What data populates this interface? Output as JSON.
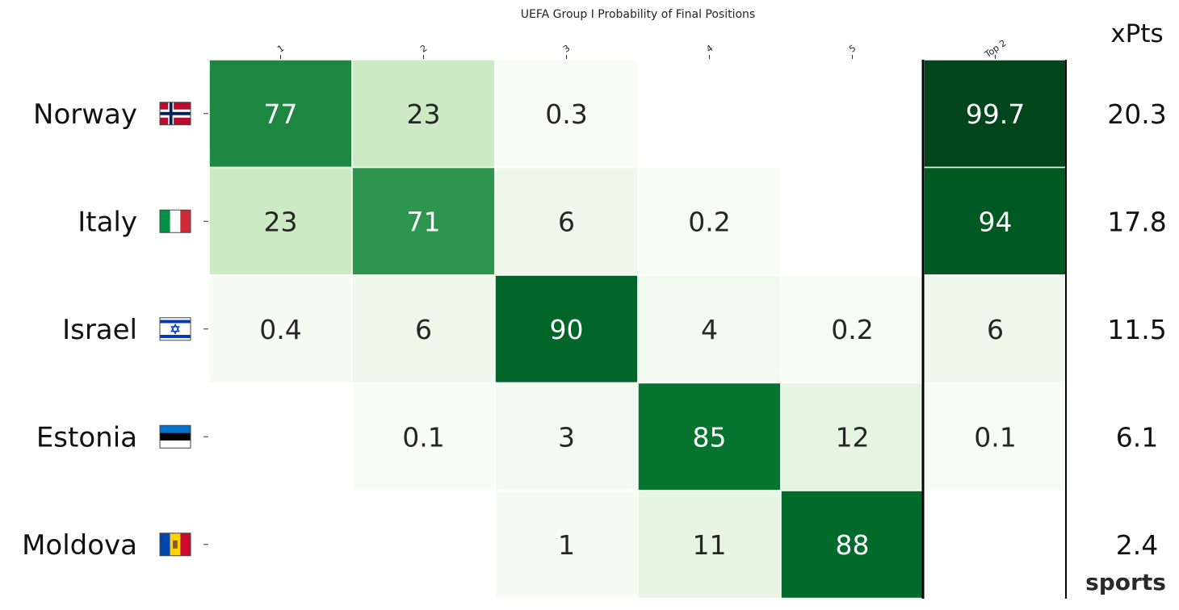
{
  "chart_data": {
    "type": "heatmap",
    "title": "UEFA Group I Probability of Final Positions",
    "columns": [
      "1",
      "2",
      "3",
      "4",
      "5",
      "Top 2"
    ],
    "xpts_header": "xPts",
    "rows": [
      {
        "team": "Norway",
        "flag": "norway-flag",
        "values": [
          77,
          23,
          0.3,
          null,
          null,
          99.7
        ],
        "xpts": "20.3"
      },
      {
        "team": "Italy",
        "flag": "italy-flag",
        "values": [
          23,
          71,
          6,
          0.2,
          null,
          94
        ],
        "xpts": "17.8"
      },
      {
        "team": "Israel",
        "flag": "israel-flag",
        "values": [
          0.4,
          6,
          90,
          4,
          0.2,
          6
        ],
        "xpts": "11.5"
      },
      {
        "team": "Estonia",
        "flag": "estonia-flag",
        "values": [
          null,
          0.1,
          3,
          85,
          12,
          0.1
        ],
        "xpts": "6.1"
      },
      {
        "team": "Moldova",
        "flag": "moldova-flag",
        "values": [
          null,
          null,
          1,
          11,
          88,
          null
        ],
        "xpts": "2.4"
      }
    ],
    "value_range": [
      0,
      100
    ],
    "colormap": "Greens",
    "grid": false
  },
  "branding": {
    "logo_text": "sports"
  }
}
